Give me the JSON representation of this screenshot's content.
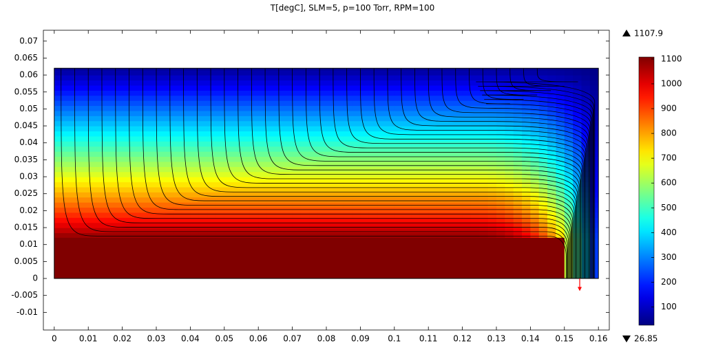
{
  "chart_data": {
    "type": "surface",
    "title": "T[degC], SLM=5, p=100 Torr, RPM=100",
    "xlim": [
      -0.0032,
      0.1632
    ],
    "ylim": [
      -0.0152,
      0.0732
    ],
    "xticks": [
      0,
      0.01,
      0.02,
      0.03,
      0.04,
      0.05,
      0.06,
      0.07,
      0.08,
      0.09,
      0.1,
      0.11,
      0.12,
      0.13,
      0.14,
      0.15,
      0.16
    ],
    "yticks": [
      -0.01,
      -0.005,
      0,
      0.005,
      0.01,
      0.015,
      0.02,
      0.025,
      0.03,
      0.035,
      0.04,
      0.045,
      0.05,
      0.055,
      0.06,
      0.065,
      0.07
    ],
    "colorbar_ticks": [
      100,
      200,
      300,
      400,
      500,
      600,
      700,
      800,
      900,
      1000,
      1100
    ],
    "colormap": "jet",
    "max": 1107.9,
    "min": 26.85,
    "grid": false
  }
}
